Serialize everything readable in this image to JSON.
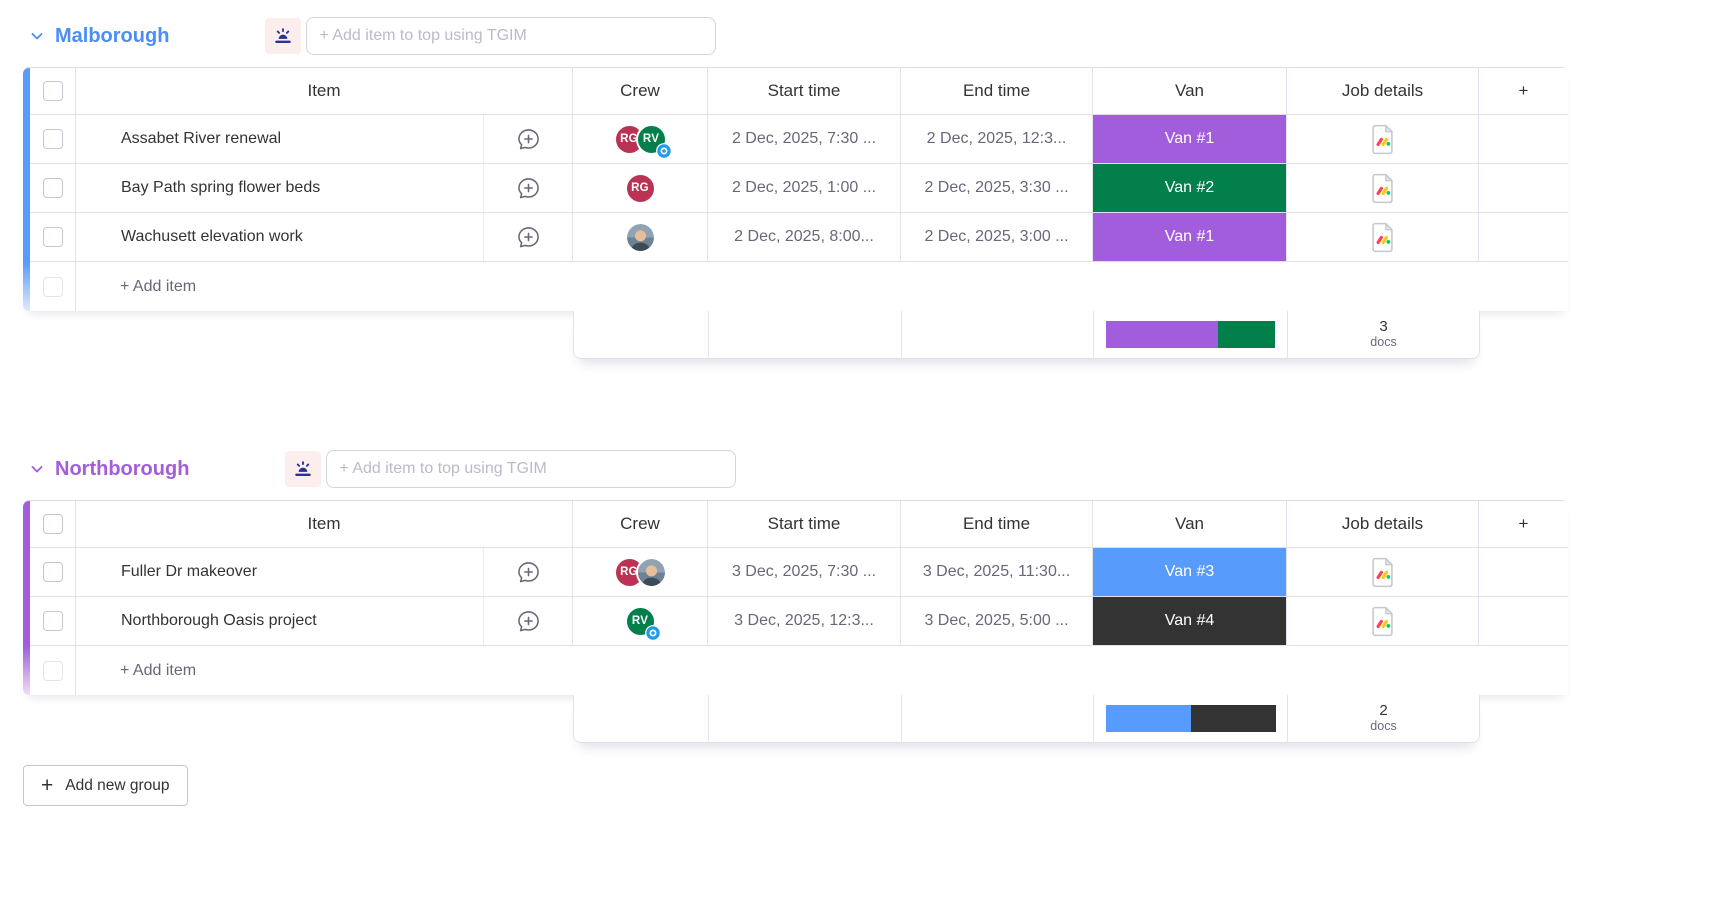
{
  "board": {
    "groups": [
      {
        "name": "Malborough",
        "title_color": "#4C8DF8",
        "bar_color": "#579BFC",
        "tgim_placeholder": "+ Add item to top using TGIM",
        "columns": [
          "Item",
          "Crew",
          "Start time",
          "End time",
          "Van",
          "Job details"
        ],
        "rows": [
          {
            "item": "Assabet River renewal",
            "crew": [
              {
                "type": "initials",
                "label": "RG",
                "color": "#BB3354"
              },
              {
                "type": "initials",
                "label": "RV",
                "color": "#037F4C",
                "badge": true
              }
            ],
            "start": "2 Dec, 2025, 7:30 ...",
            "end": "2 Dec, 2025, 12:3...",
            "van": {
              "label": "Van #1",
              "color": "#A25DDC"
            }
          },
          {
            "item": "Bay Path spring flower beds",
            "crew": [
              {
                "type": "initials",
                "label": "RG",
                "color": "#BB3354"
              }
            ],
            "start": "2 Dec, 2025, 1:00 ...",
            "end": "2 Dec, 2025, 3:30 ...",
            "van": {
              "label": "Van #2",
              "color": "#037F4C"
            }
          },
          {
            "item": "Wachusett elevation work",
            "crew": [
              {
                "type": "photo",
                "label": "crew member photo"
              }
            ],
            "start": "2 Dec, 2025, 8:00...",
            "end": "2 Dec, 2025, 3:00 ...",
            "van": {
              "label": "Van #1",
              "color": "#A25DDC"
            }
          }
        ],
        "add_item_label": "+ Add item",
        "summary": {
          "van_distribution": [
            {
              "van": "Van #1",
              "color": "#A25DDC",
              "fraction": 0.66
            },
            {
              "van": "Van #2",
              "color": "#037F4C",
              "fraction": 0.34
            }
          ],
          "docs_count": "3",
          "docs_label": "docs"
        }
      },
      {
        "name": "Northborough",
        "title_color": "#A25DDC",
        "bar_color": "#A25DDC",
        "tgim_placeholder": "+ Add item to top using TGIM",
        "columns": [
          "Item",
          "Crew",
          "Start time",
          "End time",
          "Van",
          "Job details"
        ],
        "rows": [
          {
            "item": "Fuller Dr makeover",
            "crew": [
              {
                "type": "initials",
                "label": "RG",
                "color": "#BB3354"
              },
              {
                "type": "photo",
                "label": "crew member photo"
              }
            ],
            "start": "3 Dec, 2025, 7:30 ...",
            "end": "3 Dec, 2025, 11:30...",
            "van": {
              "label": "Van #3",
              "color": "#579BFC"
            }
          },
          {
            "item": "Northborough Oasis project",
            "crew": [
              {
                "type": "initials",
                "label": "RV",
                "color": "#037F4C",
                "badge": true
              }
            ],
            "start": "3 Dec, 2025, 12:3...",
            "end": "3 Dec, 2025, 5:00 ...",
            "van": {
              "label": "Van #4",
              "color": "#333333"
            }
          }
        ],
        "add_item_label": "+ Add item",
        "summary": {
          "van_distribution": [
            {
              "van": "Van #3",
              "color": "#579BFC",
              "fraction": 0.5
            },
            {
              "van": "Van #4",
              "color": "#333333",
              "fraction": 0.5
            }
          ],
          "docs_count": "2",
          "docs_label": "docs"
        }
      }
    ],
    "icons": {
      "add_column_glyph": "+",
      "job_details": "workdoc-icon",
      "crew_badge": "blue-target-badge",
      "tgim": "sunrise-icon"
    },
    "add_new_group": {
      "label": "Add new group",
      "plus_glyph": "+"
    }
  }
}
